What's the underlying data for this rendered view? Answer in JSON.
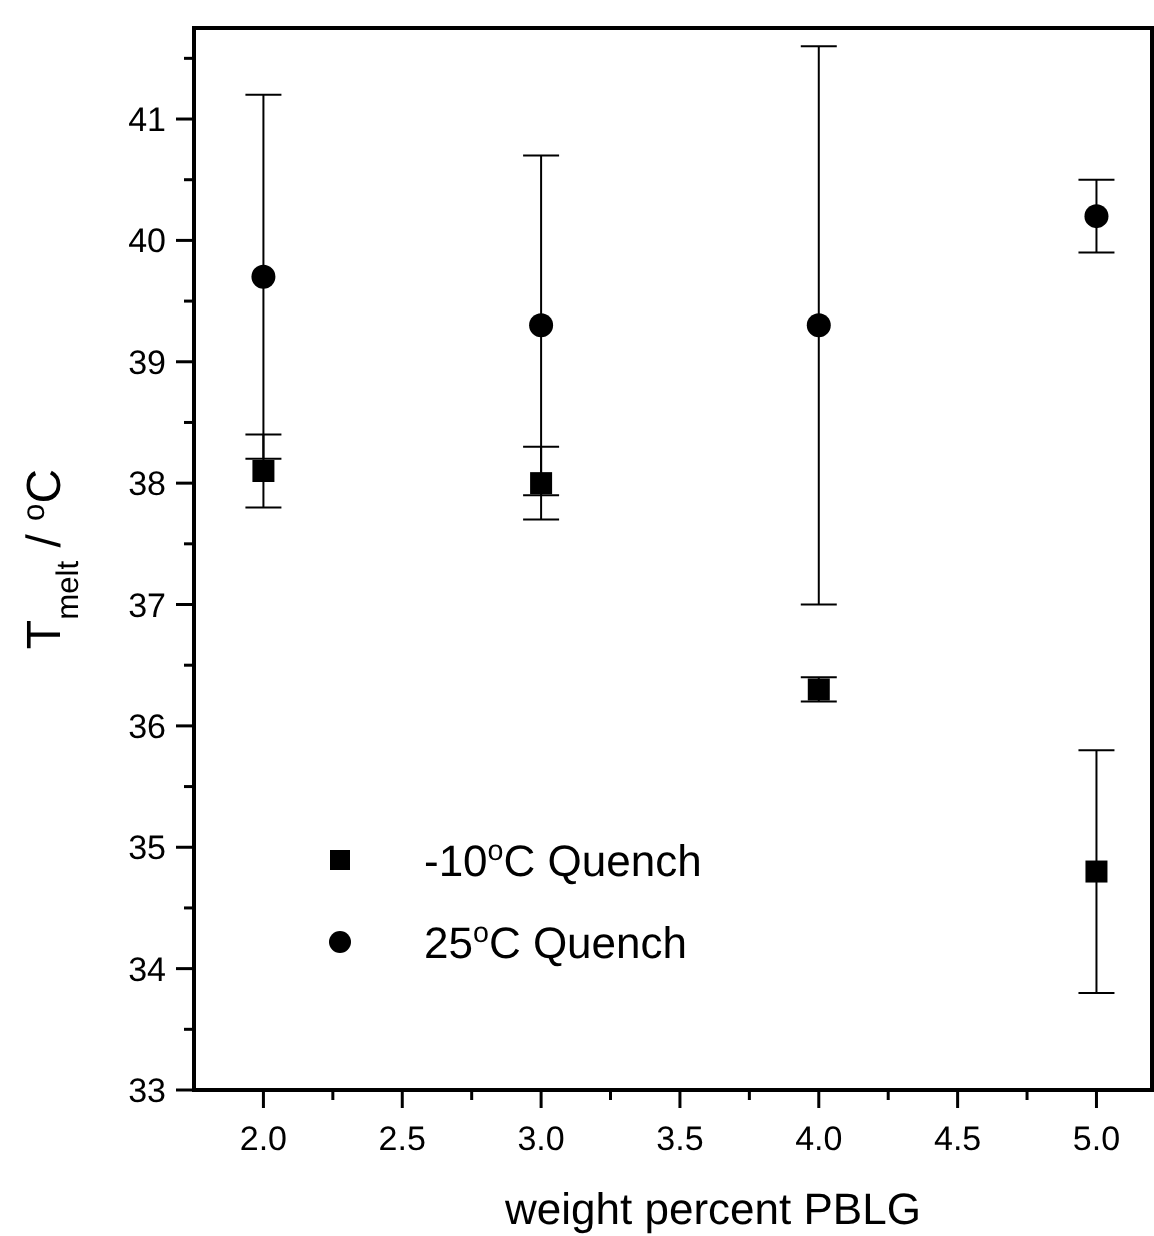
{
  "chart_data": {
    "type": "scatter",
    "xlabel": "weight percent PBLG",
    "ylabel": "T$_{melt}$ / $^{o}$C",
    "xlim": [
      1.75,
      5.2
    ],
    "ylim": [
      33,
      41.75
    ],
    "xticks": [
      {
        "value": 2,
        "label": "2.0"
      },
      {
        "value": 2.25,
        "label": null
      },
      {
        "value": 2.5,
        "label": "2.5"
      },
      {
        "value": 2.75,
        "label": null
      },
      {
        "value": 3,
        "label": "3.0"
      },
      {
        "value": 3.25,
        "label": null
      },
      {
        "value": 3.5,
        "label": "3.5"
      },
      {
        "value": 3.75,
        "label": null
      },
      {
        "value": 4,
        "label": "4.0"
      },
      {
        "value": 4.25,
        "label": null
      },
      {
        "value": 4.5,
        "label": "4.5"
      },
      {
        "value": 4.75,
        "label": null
      },
      {
        "value": 5,
        "label": "5.0"
      }
    ],
    "yticks": [
      33,
      {
        "value": 33.5,
        "label": null
      },
      34,
      {
        "value": 34.5,
        "label": null
      },
      35,
      {
        "value": 35.5,
        "label": null
      },
      36,
      {
        "value": 36.5,
        "label": null
      },
      37,
      {
        "value": 37.5,
        "label": null
      },
      38,
      {
        "value": 38.5,
        "label": null
      },
      39,
      {
        "value": 39.5,
        "label": null
      },
      40,
      {
        "value": 40.5,
        "label": null
      },
      41,
      {
        "value": 41.5,
        "label": null
      }
    ],
    "x": [
      2,
      3,
      4,
      5
    ],
    "legend": "bottom left",
    "series": [
      {
        "name": "-10$^{o}$C Quench",
        "color": "#000000",
        "marker": "square",
        "values": [
          38.1,
          38.0,
          36.3,
          34.8
        ],
        "errors": [
          0.3,
          0.3,
          0.1,
          1.0
        ]
      },
      {
        "name": "25$^{o}$C Quench",
        "color": "#000000",
        "marker": "circle",
        "values": [
          39.7,
          39.3,
          39.3,
          40.2
        ],
        "errors": [
          1.5,
          1.4,
          2.3,
          0.3
        ]
      }
    ]
  }
}
